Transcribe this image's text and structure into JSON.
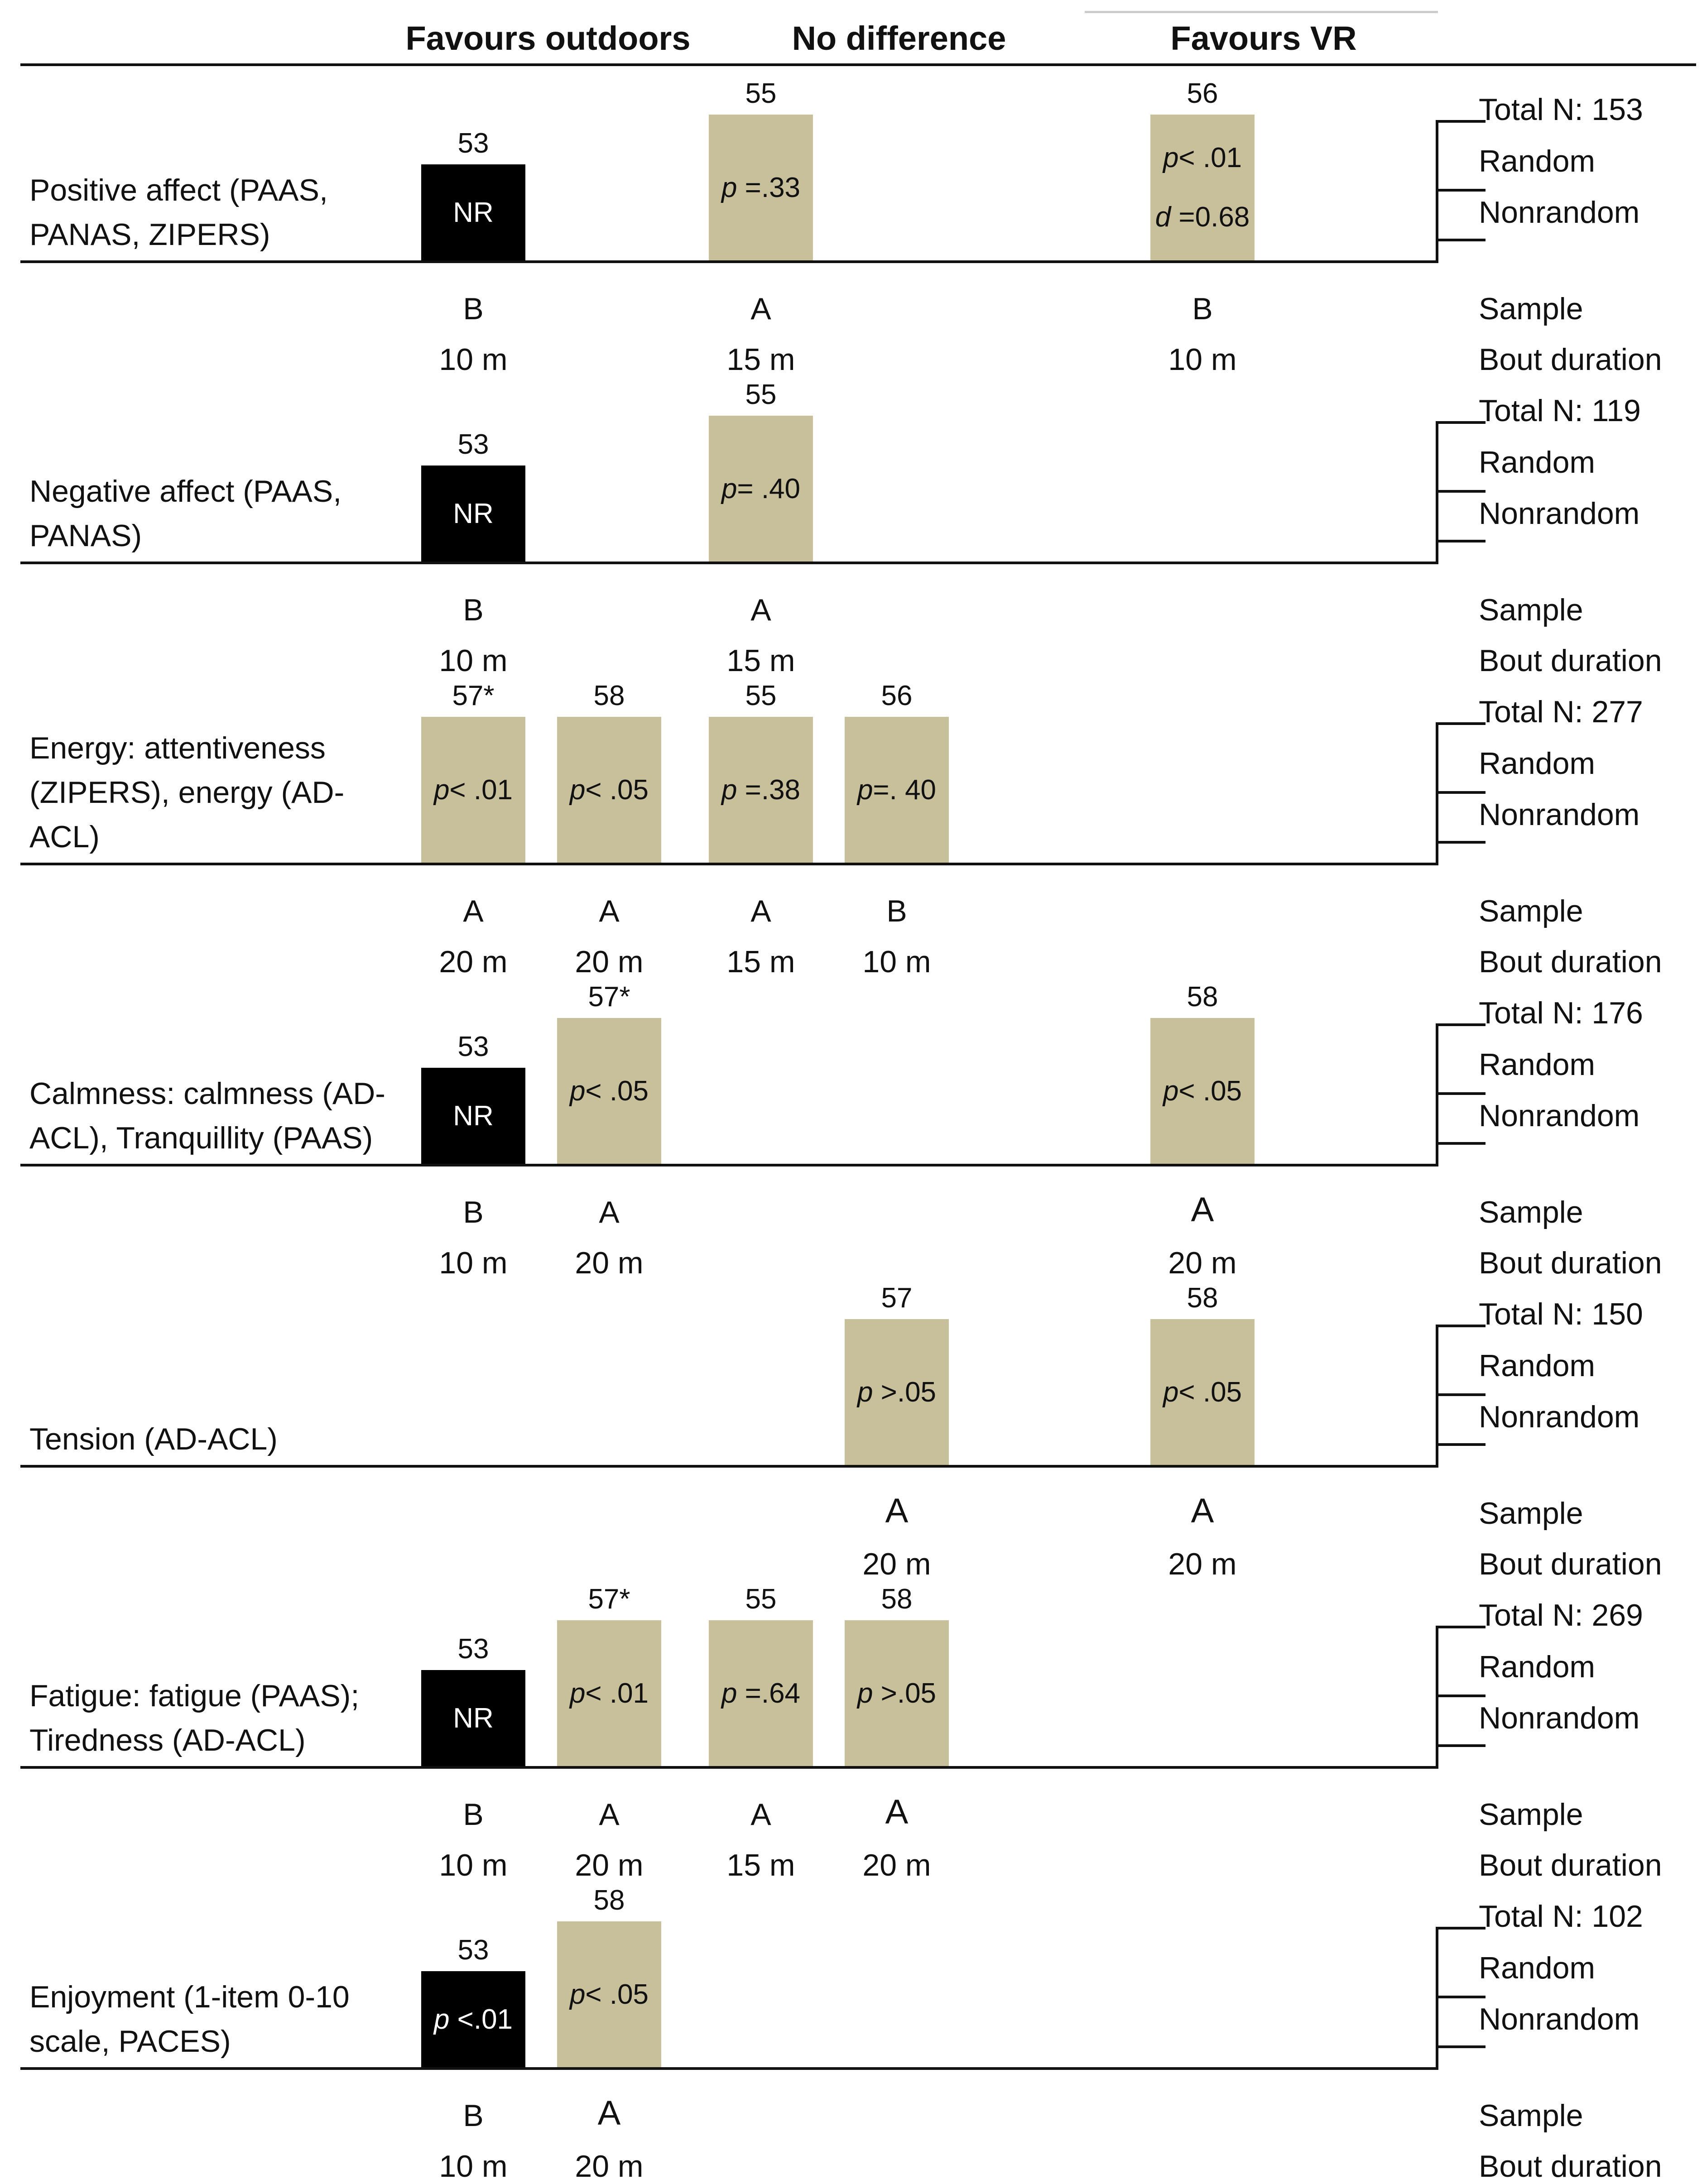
{
  "header": {
    "favours_outdoors": "Favours outdoors",
    "no_difference": "No difference",
    "favours_vr": "Favours VR"
  },
  "row_labels": {
    "random": "Random",
    "nonrandom": "Nonrandom",
    "sample": "Sample",
    "bout_duration": "Bout duration"
  },
  "colors": {
    "significant_tan": "#c8bf9b",
    "nonrandom_black": "#000000"
  },
  "panels": [
    {
      "outcome": "Positive affect (PAAS,\nPANAS, ZIPERS)",
      "total": "Total N: 153",
      "studies": [
        {
          "num": "53",
          "lines": [
            "NR"
          ],
          "color": "black",
          "height": "short",
          "col": 0,
          "sample": "B",
          "duration": "10 m"
        },
        {
          "num": "55",
          "lines": [
            "p =.33"
          ],
          "color": "tan",
          "height": "tall",
          "col": 2,
          "sample": "A",
          "duration": "15 m"
        },
        {
          "num": "56",
          "lines": [
            "p< .01",
            "d =0.68"
          ],
          "color": "tan",
          "height": "tall",
          "col": 5,
          "sample": "B",
          "duration": "10 m"
        }
      ]
    },
    {
      "outcome": "Negative affect (PAAS,\nPANAS)",
      "total": "Total N: 119",
      "studies": [
        {
          "num": "53",
          "lines": [
            "NR"
          ],
          "color": "black",
          "height": "short",
          "col": 0,
          "sample": "B",
          "duration": "10 m"
        },
        {
          "num": "55",
          "lines": [
            "p= .40"
          ],
          "color": "tan",
          "height": "tall",
          "col": 2,
          "sample": "A",
          "duration": "15 m"
        }
      ]
    },
    {
      "outcome": "Energy: attentiveness\n(ZIPERS), energy (AD-\nACL)",
      "total": "Total N: 277",
      "studies": [
        {
          "num": "57*",
          "lines": [
            "p< .01"
          ],
          "color": "tan",
          "height": "tall",
          "col": 0,
          "sample": "A",
          "duration": "20 m"
        },
        {
          "num": "58",
          "lines": [
            "p< .05"
          ],
          "color": "tan",
          "height": "tall",
          "col": 1,
          "sample": "A",
          "duration": "20 m"
        },
        {
          "num": "55",
          "lines": [
            "p =.38"
          ],
          "color": "tan",
          "height": "tall",
          "col": 2,
          "sample": "A",
          "duration": "15 m"
        },
        {
          "num": "56",
          "lines": [
            "p=. 40"
          ],
          "color": "tan",
          "height": "tall",
          "col": 3,
          "sample": "B",
          "duration": "10 m"
        }
      ]
    },
    {
      "outcome": "Calmness: calmness (AD-\nACL), Tranquillity (PAAS)",
      "total": "Total N: 176",
      "studies": [
        {
          "num": "53",
          "lines": [
            "NR"
          ],
          "color": "black",
          "height": "short",
          "col": 0,
          "sample": "B",
          "duration": "10 m"
        },
        {
          "num": "57*",
          "lines": [
            "p< .05"
          ],
          "color": "tan",
          "height": "tall",
          "col": 1,
          "sample": "A",
          "duration": "20 m"
        },
        {
          "num": "58",
          "lines": [
            "p< .05"
          ],
          "color": "tan",
          "height": "tall",
          "col": 5,
          "sample": "A",
          "duration": "20 m",
          "big": true
        }
      ]
    },
    {
      "outcome": "Tension (AD-ACL)",
      "total": "Total N: 150",
      "studies": [
        {
          "num": "57",
          "lines": [
            "p >.05"
          ],
          "color": "tan",
          "height": "tall",
          "col": 3,
          "sample": "A",
          "duration": "20 m",
          "big": true
        },
        {
          "num": "58",
          "lines": [
            "p< .05"
          ],
          "color": "tan",
          "height": "tall",
          "col": 5,
          "sample": "A",
          "duration": "20 m",
          "big": true
        }
      ]
    },
    {
      "outcome": "Fatigue: fatigue (PAAS);\nTiredness (AD-ACL)",
      "total": "Total N: 269",
      "studies": [
        {
          "num": "53",
          "lines": [
            "NR"
          ],
          "color": "black",
          "height": "short",
          "col": 0,
          "sample": "B",
          "duration": "10 m"
        },
        {
          "num": "57*",
          "lines": [
            "p< .01"
          ],
          "color": "tan",
          "height": "tall",
          "col": 1,
          "sample": "A",
          "duration": "20 m"
        },
        {
          "num": "55",
          "lines": [
            "p =.64"
          ],
          "color": "tan",
          "height": "tall",
          "col": 2,
          "sample": "A",
          "duration": "15 m"
        },
        {
          "num": "58",
          "lines": [
            "p >.05"
          ],
          "color": "tan",
          "height": "tall",
          "col": 3,
          "sample": "A",
          "duration": "20 m",
          "big": true
        }
      ]
    },
    {
      "outcome": "Enjoyment (1-item 0-10\nscale, PACES)",
      "total": "Total N: 102",
      "studies": [
        {
          "num": "53",
          "lines": [
            "p <.01"
          ],
          "color": "black",
          "height": "short",
          "col": 0,
          "sample": "B",
          "duration": "10 m"
        },
        {
          "num": "58",
          "lines": [
            "p< .05"
          ],
          "color": "tan",
          "height": "tall",
          "col": 1,
          "sample": "A",
          "duration": "20 m",
          "big": true
        }
      ]
    }
  ]
}
